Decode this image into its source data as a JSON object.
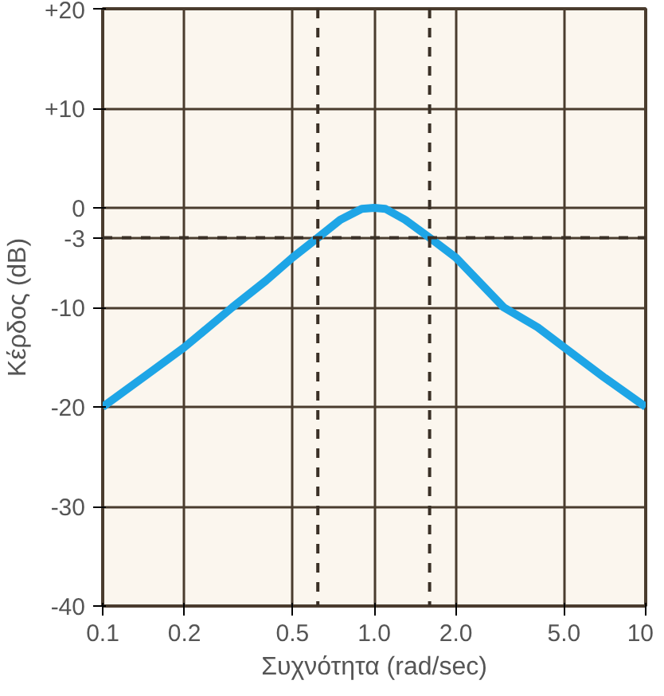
{
  "chart_data": {
    "type": "line",
    "xlabel": "Συχνότητα (rad/sec)",
    "ylabel": "Κέρδος (dB)",
    "x": [
      0.1,
      0.15,
      0.2,
      0.3,
      0.4,
      0.5,
      0.62,
      0.75,
      0.9,
      1.0,
      1.1,
      1.3,
      1.6,
      2.0,
      3.0,
      4.0,
      5.0,
      7.0,
      10
    ],
    "series": [
      {
        "color": "#1ea5e6",
        "values": [
          -20,
          -16.5,
          -14,
          -10,
          -7.3,
          -5,
          -3,
          -1.2,
          -0.1,
          0,
          -0.1,
          -1.2,
          -3,
          -5,
          -10,
          -12,
          -14,
          -17,
          -20
        ]
      }
    ],
    "xlim": [
      0.1,
      10
    ],
    "ylim": [
      -40,
      20
    ],
    "log": "x",
    "xticks": [
      0.1,
      0.2,
      0.5,
      {
        "value": 1.0,
        "label": "1.0"
      },
      {
        "value": 2.0,
        "label": "2.0"
      },
      {
        "value": 5.0,
        "label": "5.0"
      },
      10
    ],
    "yticks": [
      {
        "value": 20,
        "label": "+20"
      },
      {
        "value": 10,
        "label": "+10"
      },
      0,
      -3,
      -10,
      -20,
      -30,
      -40
    ],
    "ref_lines": [
      {
        "axis": "y",
        "value": -3,
        "color": "#3a3026",
        "line_style": "dashed"
      },
      {
        "axis": "x",
        "value": 0.62,
        "color": "#3a3026",
        "line_style": "dashed"
      },
      {
        "axis": "x",
        "value": 1.6,
        "color": "#3a3026",
        "line_style": "dashed"
      }
    ],
    "grid": true,
    "marker": "none",
    "line_style": "solid"
  }
}
